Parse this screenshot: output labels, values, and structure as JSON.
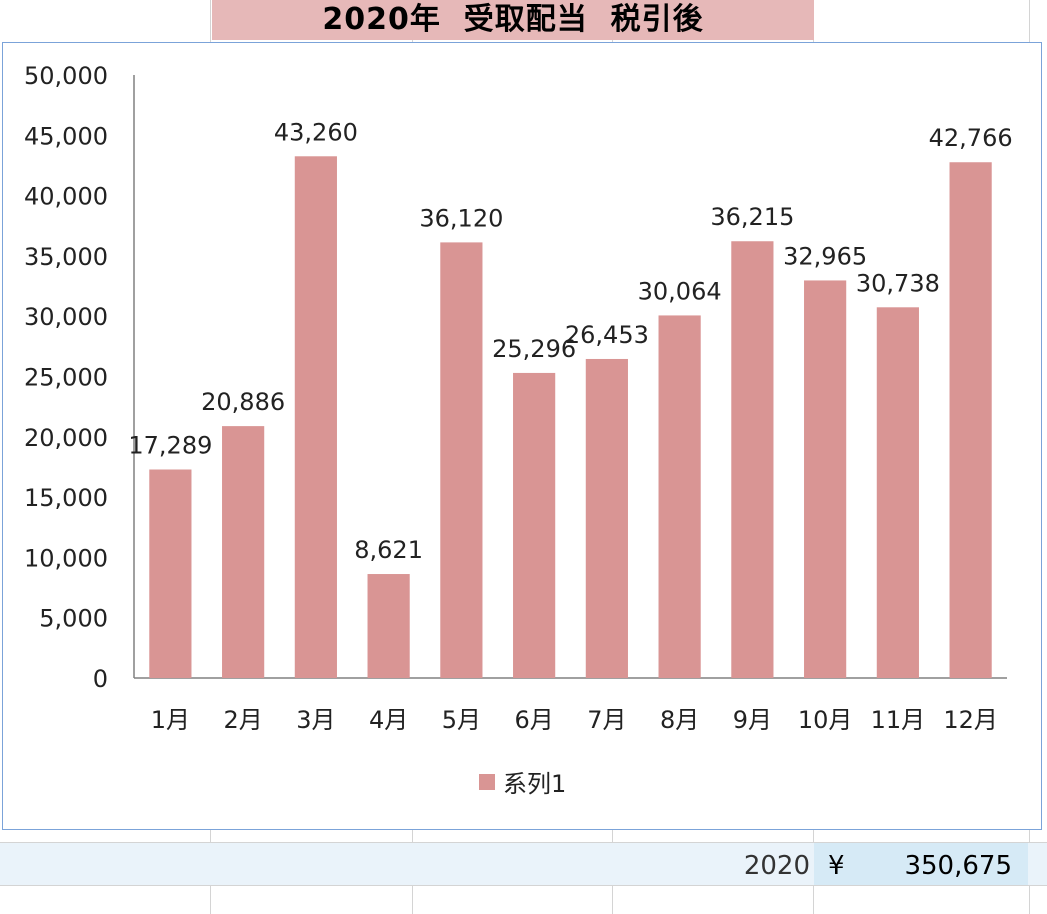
{
  "sheet": {
    "title": "2020年  受取配当  税引後",
    "footer_year": "2020",
    "footer_currency": "¥",
    "footer_total": "350,675"
  },
  "colors": {
    "bar": "#d99594",
    "axis": "#808080",
    "text": "#222222",
    "title_fill": "#e6b8b8",
    "frame_border": "#7ba3d9",
    "footer_fill": "#d6eaf6"
  },
  "chart_data": {
    "type": "bar",
    "categories": [
      "1月",
      "2月",
      "3月",
      "4月",
      "5月",
      "6月",
      "7月",
      "8月",
      "9月",
      "10月",
      "11月",
      "12月"
    ],
    "series": [
      {
        "name": "系列1",
        "values": [
          17289,
          20886,
          43260,
          8621,
          36120,
          25296,
          26453,
          30064,
          36215,
          32965,
          30738,
          42766
        ],
        "labels": [
          "17,289",
          "20,886",
          "43,260",
          "8,621",
          "36,120",
          "25,296",
          "26,453",
          "30,064",
          "36,215",
          "32,965",
          "30,738",
          "42,766"
        ]
      }
    ],
    "ylim": [
      0,
      50000
    ],
    "y_ticks": [
      0,
      5000,
      10000,
      15000,
      20000,
      25000,
      30000,
      35000,
      40000,
      45000,
      50000
    ],
    "y_tick_labels": [
      "0",
      "5,000",
      "10,000",
      "15,000",
      "20,000",
      "25,000",
      "30,000",
      "35,000",
      "40,000",
      "45,000",
      "50,000"
    ],
    "grid": false,
    "legend": {
      "position": "bottom",
      "entries": [
        "系列1"
      ]
    }
  }
}
